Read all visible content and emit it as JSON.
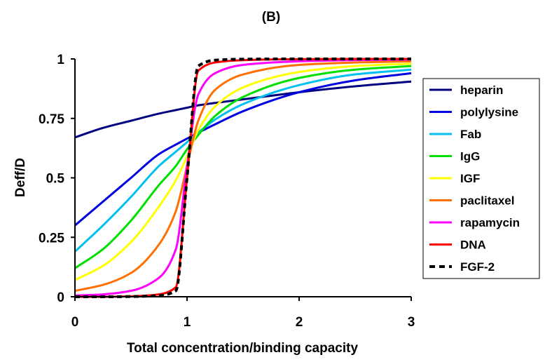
{
  "chart_data": {
    "type": "line",
    "title": "(B)",
    "xlabel": "Total concentration/binding capacity",
    "ylabel": "Deff/D",
    "xlim": [
      0,
      3
    ],
    "ylim": [
      0,
      1
    ],
    "xticks": [
      0,
      1,
      2,
      3
    ],
    "xtick_labels": [
      "0",
      "1",
      "2",
      "3"
    ],
    "yticks": [
      0,
      0.25,
      0.5,
      0.75,
      1
    ],
    "ytick_labels": [
      "0",
      "0.25",
      "0.5",
      "0.75",
      "1"
    ],
    "grid": false,
    "legend": "right",
    "x": [
      0,
      0.25,
      0.5,
      0.75,
      0.9,
      1.0,
      1.1,
      1.25,
      1.5,
      2.0,
      2.5,
      3.0
    ],
    "series": [
      {
        "name": "heparin",
        "color": "#000080",
        "dash": "solid",
        "values": [
          0.67,
          0.71,
          0.74,
          0.77,
          0.785,
          0.795,
          0.805,
          0.815,
          0.83,
          0.86,
          0.885,
          0.905
        ]
      },
      {
        "name": "polylysine",
        "color": "#0000e0",
        "dash": "solid",
        "values": [
          0.3,
          0.4,
          0.5,
          0.6,
          0.64,
          0.665,
          0.69,
          0.725,
          0.78,
          0.86,
          0.91,
          0.94
        ]
      },
      {
        "name": "Fab",
        "color": "#00c0f0",
        "dash": "solid",
        "values": [
          0.19,
          0.3,
          0.42,
          0.55,
          0.61,
          0.65,
          0.69,
          0.745,
          0.81,
          0.89,
          0.935,
          0.955
        ]
      },
      {
        "name": "IgG",
        "color": "#00e000",
        "dash": "solid",
        "values": [
          0.12,
          0.2,
          0.32,
          0.47,
          0.55,
          0.62,
          0.68,
          0.76,
          0.84,
          0.92,
          0.955,
          0.97
        ]
      },
      {
        "name": "IGF",
        "color": "#ffff00",
        "dash": "solid",
        "values": [
          0.07,
          0.13,
          0.23,
          0.38,
          0.49,
          0.59,
          0.7,
          0.8,
          0.88,
          0.945,
          0.97,
          0.98
        ]
      },
      {
        "name": "paclitaxel",
        "color": "#ff7000",
        "dash": "solid",
        "values": [
          0.025,
          0.05,
          0.1,
          0.22,
          0.36,
          0.55,
          0.74,
          0.87,
          0.935,
          0.975,
          0.985,
          0.99
        ]
      },
      {
        "name": "rapamycin",
        "color": "#ff00ff",
        "dash": "solid",
        "values": [
          0.005,
          0.01,
          0.025,
          0.08,
          0.2,
          0.55,
          0.85,
          0.94,
          0.975,
          0.99,
          0.995,
          0.997
        ]
      },
      {
        "name": "DNA",
        "color": "#ff0000",
        "dash": "solid",
        "values": [
          0,
          0,
          0.002,
          0.01,
          0.04,
          0.5,
          0.95,
          0.985,
          0.995,
          0.999,
          1.0,
          1.0
        ]
      },
      {
        "name": "FGF-2",
        "color": "#000000",
        "dash": "dashed",
        "values": [
          0,
          0,
          0.001,
          0.005,
          0.025,
          0.5,
          0.97,
          0.995,
          0.999,
          1.0,
          1.0,
          1.0
        ]
      }
    ]
  }
}
